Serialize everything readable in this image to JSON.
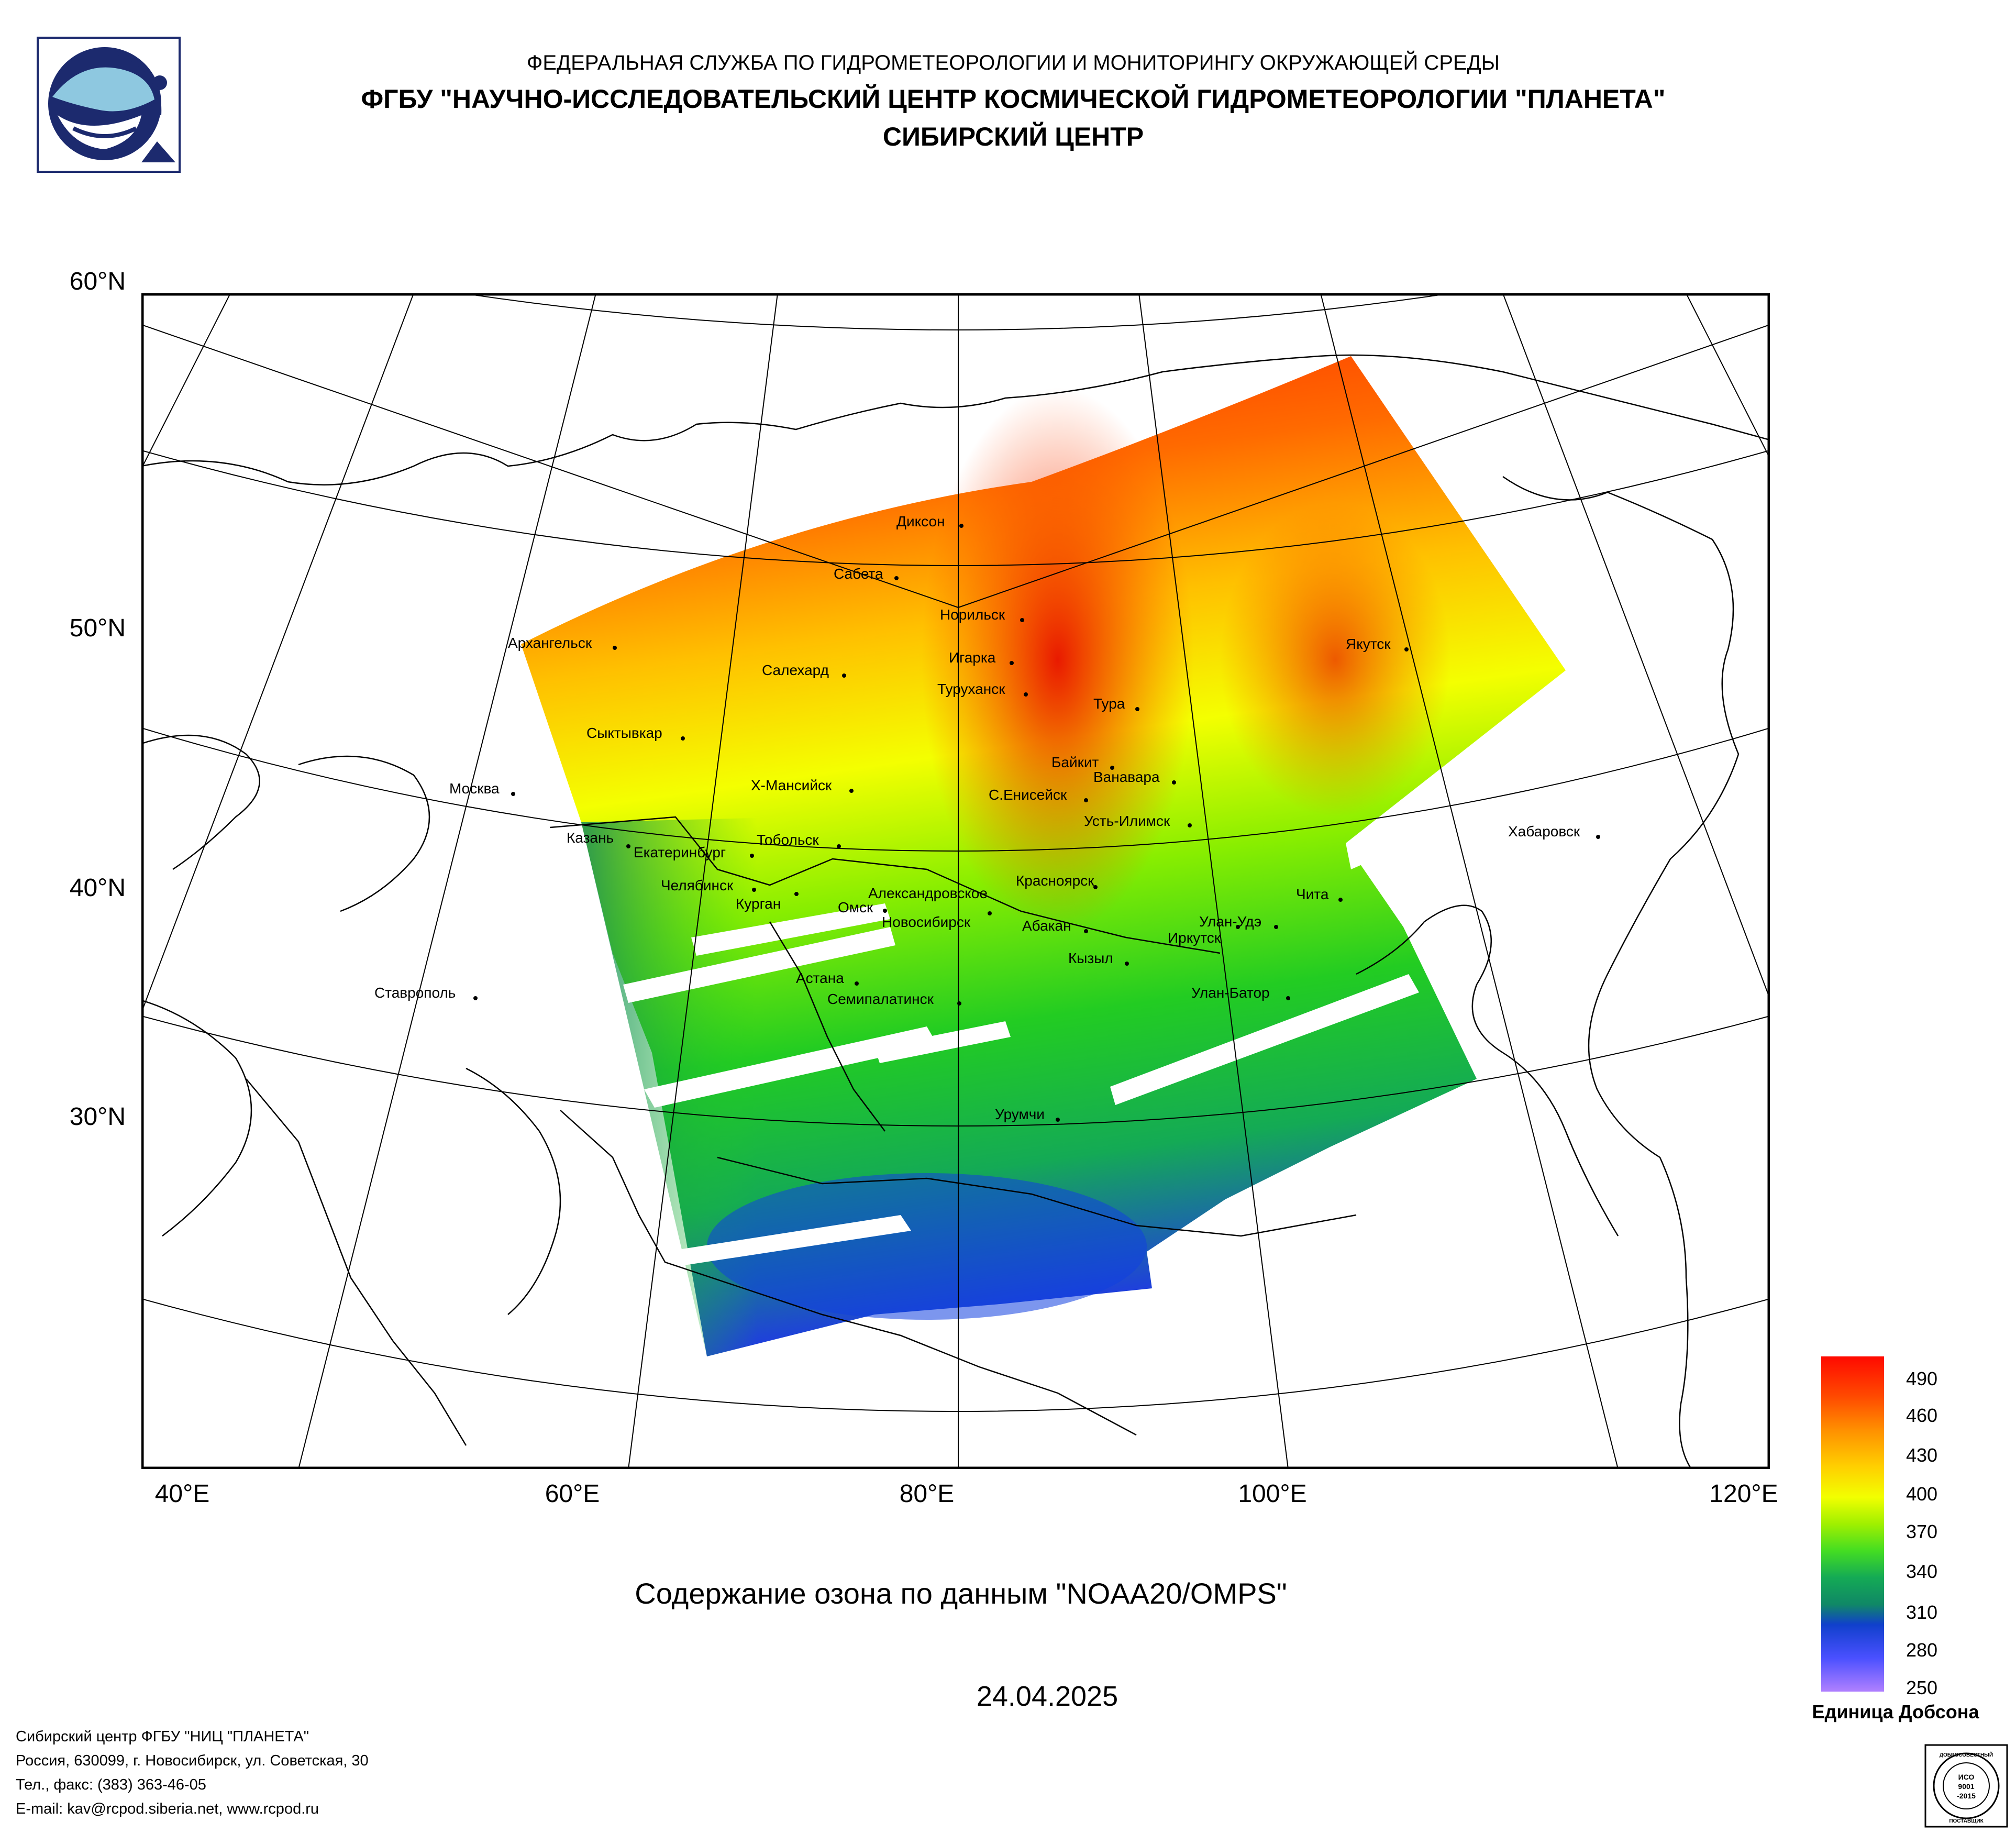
{
  "header": {
    "line1": "ФЕДЕРАЛЬНАЯ СЛУЖБА ПО ГИДРОМЕТЕОРОЛОГИИ И МОНИТОРИНГУ ОКРУЖАЮЩЕЙ СРЕДЫ",
    "line2": "ФГБУ \"НАУЧНО-ИССЛЕДОВАТЕЛЬСКИЙ ЦЕНТР КОСМИЧЕСКОЙ ГИДРОМЕТЕОРОЛОГИИ \"ПЛАНЕТА\"",
    "line3": "СИБИРСКИЙ ЦЕНТР"
  },
  "map": {
    "lat_labels": [
      "60°N",
      "50°N",
      "40°N",
      "30°N"
    ],
    "lon_labels": [
      "40°E",
      "60°E",
      "80°E",
      "100°E",
      "120°E"
    ],
    "cities": [
      "Диксон",
      "Сабета",
      "Норильск",
      "Игарка",
      "Туруханск",
      "Салехард",
      "Архангельск",
      "Сыктывкар",
      "Москва",
      "Казань",
      "Екатеринбург",
      "Тобольск",
      "Х-Мансийск",
      "Челябинск",
      "Курган",
      "Омск",
      "Александровское",
      "Новосибирск",
      "Тура",
      "Байкит",
      "Ванавара",
      "С.Енисейск",
      "Усть-Илимск",
      "Красноярск",
      "Абакан",
      "Кызыл",
      "Иркутск",
      "Улан-Удэ",
      "Чита",
      "Улан-Батор",
      "Астана",
      "Семипалатинск",
      "Урумчи",
      "Ставрополь",
      "Якутск",
      "Хабаровск"
    ]
  },
  "title": "Содержание озона по данным \"NOAA20/OMPS\"",
  "date": "24.04.2025",
  "legend": {
    "values": [
      "490",
      "460",
      "430",
      "400",
      "370",
      "340",
      "310",
      "280",
      "250"
    ],
    "units": "Единица Добсона"
  },
  "footer": {
    "line1": "Сибирский центр ФГБУ \"НИЦ \"ПЛАНЕТА\"",
    "line2": "Россия, 630099, г. Новосибирск, ул. Советская, 30",
    "line3": "Тел., факс: (383) 363-46-05",
    "line4": "E-mail: kav@rcpod.siberia.net, www.rcpod.ru"
  },
  "iso_badge": {
    "top": "ДОБРОСОВЕСТНЫЙ",
    "mid1": "ИСО",
    "mid2": "9001",
    "mid3": "-2015",
    "bottom": "ПОСТАВЩИК"
  }
}
